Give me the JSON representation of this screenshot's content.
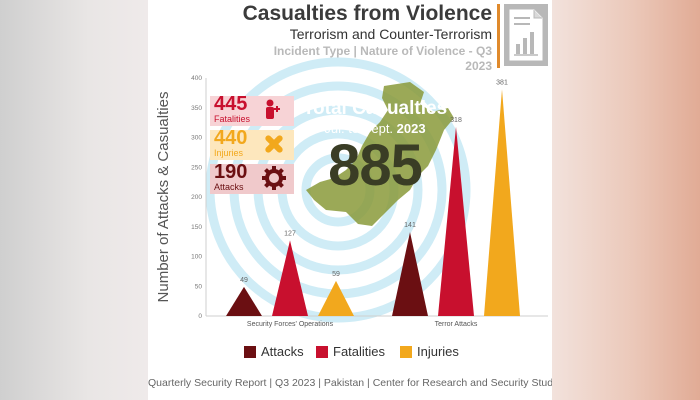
{
  "header": {
    "title": "Casualties from Violence",
    "subtitle": "Terrorism and Counter-Terrorism",
    "subtitle2": "Incident Type | Nature of Violence - Q3 2023"
  },
  "stats": [
    {
      "value": "445",
      "label": "Fatalities",
      "color": "#c8102e",
      "icon": "wounded-person-icon"
    },
    {
      "value": "440",
      "label": "Injuries",
      "color": "#f2a81d",
      "icon": "bandage-icon"
    },
    {
      "value": "190",
      "label": "Attacks",
      "color": "#6b0f12",
      "icon": "gear-icon"
    }
  ],
  "total": {
    "title": "Total Casualties",
    "period": "Jul. to Sept.",
    "year": "2023",
    "value": "885"
  },
  "colors": {
    "attacks": "#6b0f12",
    "fatalities": "#c8102e",
    "injuries": "#f2a81d",
    "map": "#8a9a3a"
  },
  "footer": "Quarterly Security Report | Q3 2023 | Pakistan | Center for Research and Security Studies",
  "chart_data": {
    "type": "bar",
    "categories": [
      "Security Forces' Operations",
      "Terror Attacks"
    ],
    "series": [
      {
        "name": "Attacks",
        "values": [
          49,
          141
        ]
      },
      {
        "name": "Fatalities",
        "values": [
          127,
          318
        ]
      },
      {
        "name": "Injuries",
        "values": [
          59,
          381
        ]
      }
    ],
    "ylabel": "Number of Attacks & Casualties",
    "xlabel": "",
    "ylim": [
      0,
      400
    ],
    "yticks": [
      0,
      50,
      100,
      150,
      200,
      250,
      300,
      350,
      400
    ],
    "grid": false,
    "legend_position": "bottom"
  }
}
